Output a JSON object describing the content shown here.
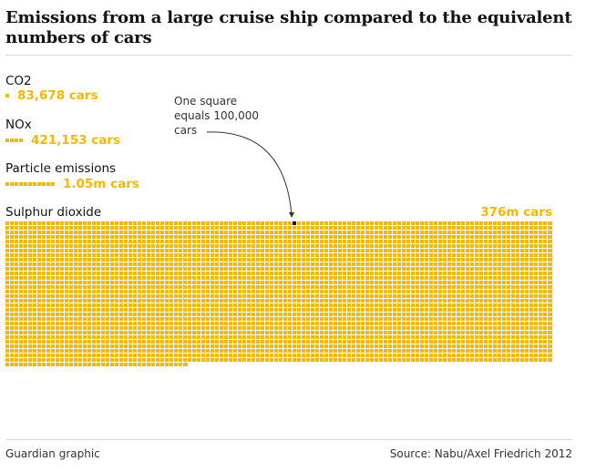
{
  "header": {
    "title": "Emissions from a large cruise ship compared to the equivalent numbers of cars"
  },
  "footer": {
    "credit": "Guardian graphic",
    "source": "Source: Nabu/Axel Friedrich 2012"
  },
  "colors": {
    "accent": "#F5B800",
    "square": "#F5B800",
    "grid_line": "#ffffff",
    "annotation": "#333333",
    "rule": "#dcdcdc"
  },
  "chart_data": {
    "type": "waffle",
    "unit_value": 100000,
    "annotation": "One square equals 100,000 cars",
    "series": [
      {
        "name": "CO2",
        "cars": 83678,
        "value_label": "83,678 cars"
      },
      {
        "name": "NOx",
        "cars": 421153,
        "value_label": "421,153 cars"
      },
      {
        "name": "Particle emissions",
        "cars": 1050000,
        "value_label": "1.05m cars"
      },
      {
        "name": "Sulphur dioxide",
        "cars": 376000000,
        "value_label": "376m cars"
      }
    ]
  }
}
